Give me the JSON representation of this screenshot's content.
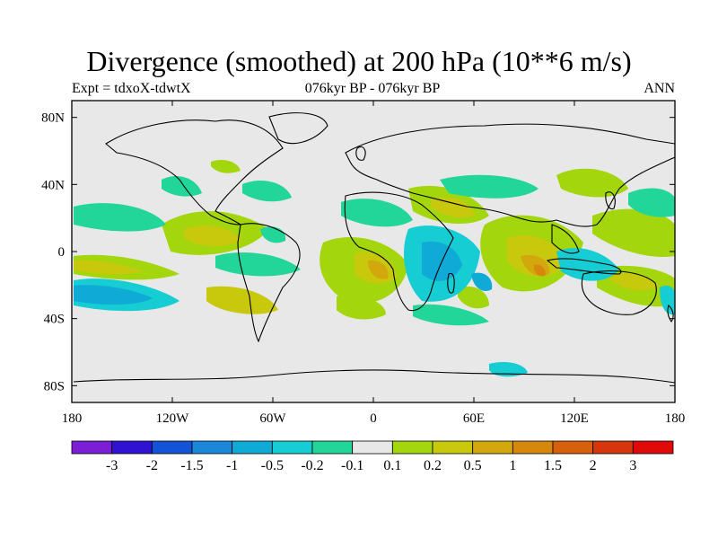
{
  "header": {
    "title": "Divergence (smoothed) at 200 hPa (10**6 m/s)",
    "left": "Expt = tdxoX-tdwtX",
    "center": "076kyr BP - 076kyr BP",
    "right": "ANN"
  },
  "map": {
    "lat_ticks": [
      "80N",
      "40N",
      "0",
      "40S",
      "80S"
    ],
    "lon_ticks": [
      "180",
      "120W",
      "60W",
      "0",
      "60E",
      "120E",
      "180"
    ],
    "background_color": "#e8e8e8"
  },
  "colorbar": {
    "labels": [
      "-3",
      "-2",
      "-1.5",
      "-1",
      "-0.5",
      "-0.2",
      "-0.1",
      "0.1",
      "0.2",
      "0.5",
      "1",
      "1.5",
      "2",
      "3"
    ],
    "colors": [
      "#7a1fd6",
      "#2f12d2",
      "#1452d6",
      "#1b87d9",
      "#10aad6",
      "#15cdd2",
      "#22d69a",
      "#e8e8e8",
      "#a3d60c",
      "#c8c80c",
      "#d2a80c",
      "#d6880c",
      "#d6600c",
      "#d6360e",
      "#e00a0a"
    ]
  }
}
